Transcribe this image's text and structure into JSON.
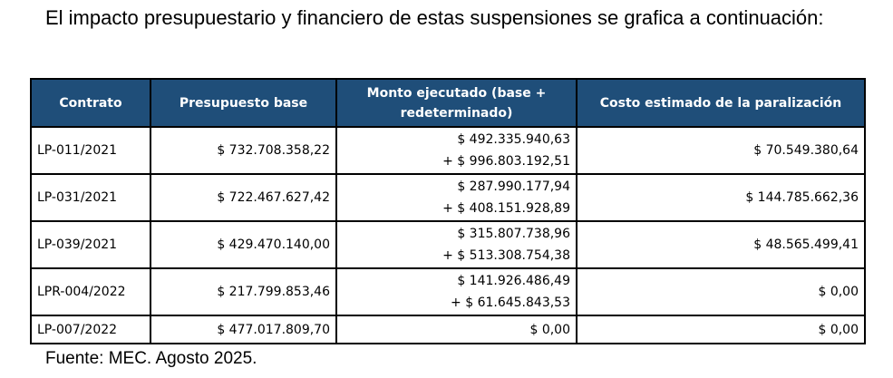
{
  "intro": "El impacto presupuestario y financiero de estas suspensiones se grafica a continuación:",
  "table": {
    "headers": [
      "Contrato",
      "Presupuesto base",
      "Monto ejecutado (base + redeterminado)",
      "Costo estimado de la paralización"
    ],
    "rows": [
      {
        "contrato": "LP-011/2021",
        "presupuesto": "$ 732.708.358,22",
        "monto_1": "$ 492.335.940,63",
        "monto_2": "+ $ 996.803.192,51",
        "costo": "$ 70.549.380,64"
      },
      {
        "contrato": "LP-031/2021",
        "presupuesto": "$ 722.467.627,42",
        "monto_1": "$ 287.990.177,94",
        "monto_2": "+ $ 408.151.928,89",
        "costo": "$ 144.785.662,36"
      },
      {
        "contrato": "LP-039/2021",
        "presupuesto": "$ 429.470.140,00",
        "monto_1": "$ 315.807.738,96",
        "monto_2": "+ $ 513.308.754,38",
        "costo": "$ 48.565.499,41"
      },
      {
        "contrato": "LPR-004/2022",
        "presupuesto": "$ 217.799.853,46",
        "monto_1": "$ 141.926.486,49",
        "monto_2": "+ $ 61.645.843,53",
        "costo": "$ 0,00"
      },
      {
        "contrato": "LP-007/2022",
        "presupuesto": "$ 477.017.809,70",
        "monto_1": "$ 0,00",
        "monto_2": "",
        "costo": "$ 0,00"
      }
    ]
  },
  "source": "Fuente: MEC. Agosto 2025.",
  "colors": {
    "header_bg": "#1f4e79",
    "header_text": "#ffffff"
  }
}
